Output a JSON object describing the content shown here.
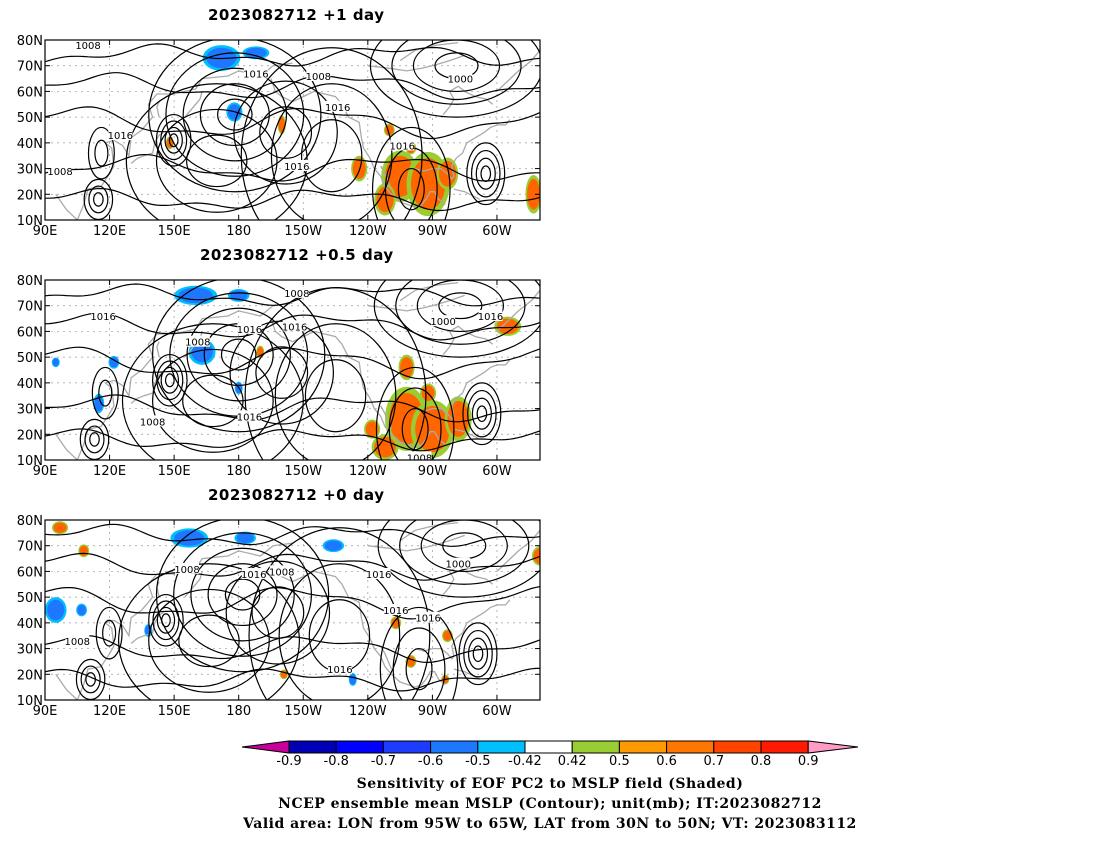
{
  "panels": [
    {
      "title": "2023082712  +1 day",
      "contour_labels": [
        {
          "text": "1008",
          "lon": 110,
          "lat": 78
        },
        {
          "text": "1016",
          "lon": 125,
          "lat": 43
        },
        {
          "text": "1008",
          "lon": 97,
          "lat": 29
        },
        {
          "text": "1016",
          "lon": 188,
          "lat": 67
        },
        {
          "text": "1008",
          "lon": 217,
          "lat": 66
        },
        {
          "text": "1016",
          "lon": 226,
          "lat": 54
        },
        {
          "text": "1016",
          "lon": 207,
          "lat": 31
        },
        {
          "text": "1016",
          "lon": 256,
          "lat": 39
        },
        {
          "text": "1000",
          "lon": 283,
          "lat": 65
        }
      ]
    },
    {
      "title": "2023082712  +0.5 day",
      "contour_labels": [
        {
          "text": "1008",
          "lon": 207,
          "lat": 75
        },
        {
          "text": "1016",
          "lon": 117,
          "lat": 66
        },
        {
          "text": "1008",
          "lon": 161,
          "lat": 56
        },
        {
          "text": "1016",
          "lon": 185,
          "lat": 61
        },
        {
          "text": "1016",
          "lon": 206,
          "lat": 62
        },
        {
          "text": "1016",
          "lon": 185,
          "lat": 27
        },
        {
          "text": "1008",
          "lon": 140,
          "lat": 25
        },
        {
          "text": "1000",
          "lon": 275,
          "lat": 64
        },
        {
          "text": "1016",
          "lon": 297,
          "lat": 66
        },
        {
          "text": "1008",
          "lon": 264,
          "lat": 11
        }
      ]
    },
    {
      "title": "2023082712  +0 day",
      "contour_labels": [
        {
          "text": "1008",
          "lon": 156,
          "lat": 61
        },
        {
          "text": "1016",
          "lon": 187,
          "lat": 59
        },
        {
          "text": "1008",
          "lon": 200,
          "lat": 60
        },
        {
          "text": "1016",
          "lon": 245,
          "lat": 59
        },
        {
          "text": "1016",
          "lon": 253,
          "lat": 45
        },
        {
          "text": "1016",
          "lon": 268,
          "lat": 42
        },
        {
          "text": "1016",
          "lon": 227,
          "lat": 22
        },
        {
          "text": "1008",
          "lon": 105,
          "lat": 33
        },
        {
          "text": "1000",
          "lon": 282,
          "lat": 63
        }
      ]
    }
  ],
  "axes": {
    "lon_ticks": [
      {
        "lon": 90,
        "label": "90E"
      },
      {
        "lon": 120,
        "label": "120E"
      },
      {
        "lon": 150,
        "label": "150E"
      },
      {
        "lon": 180,
        "label": "180"
      },
      {
        "lon": 210,
        "label": "150W"
      },
      {
        "lon": 240,
        "label": "120W"
      },
      {
        "lon": 270,
        "label": "90W"
      },
      {
        "lon": 300,
        "label": "60W"
      }
    ],
    "lat_ticks": [
      {
        "lat": 10,
        "label": "10N"
      },
      {
        "lat": 20,
        "label": "20N"
      },
      {
        "lat": 30,
        "label": "30N"
      },
      {
        "lat": 40,
        "label": "40N"
      },
      {
        "lat": 50,
        "label": "50N"
      },
      {
        "lat": 60,
        "label": "60N"
      },
      {
        "lat": 70,
        "label": "70N"
      },
      {
        "lat": 80,
        "label": "80N"
      }
    ],
    "lon_range": [
      90,
      320
    ],
    "lat_range": [
      10,
      80
    ]
  },
  "colorbar": {
    "bins": [
      {
        "label": "",
        "color": "#c8009a"
      },
      {
        "label": "-0.9",
        "color": "#0000b4"
      },
      {
        "label": "-0.8",
        "color": "#0000ff"
      },
      {
        "label": "-0.7",
        "color": "#1e3cff"
      },
      {
        "label": "-0.6",
        "color": "#1e78ff"
      },
      {
        "label": "-0.5",
        "color": "#00bfff"
      },
      {
        "label": "-0.42",
        "color": "#ffffff"
      },
      {
        "label": "0.42",
        "color": "#9acd32"
      },
      {
        "label": "0.5",
        "color": "#ff9900"
      },
      {
        "label": "0.6",
        "color": "#ff7700"
      },
      {
        "label": "0.7",
        "color": "#ff4400"
      },
      {
        "label": "0.8",
        "color": "#ff1a00"
      },
      {
        "label": "0.9",
        "color": "#ff9bc4"
      }
    ]
  },
  "caption": {
    "line1": "Sensitivity of EOF PC2 to MSLP field (Shaded)",
    "line2": "NCEP ensemble mean MSLP (Contour); unit(mb); IT:2023082712",
    "line3": "Valid area: LON from 95W to 65W, LAT from 30N to 50N; VT: 2023083112"
  },
  "colors": {
    "contour": "#000000",
    "coastline": "#aaaaaa",
    "grid": "#999999",
    "positive_shade": "#ff6600",
    "positive_edge": "#9acd32",
    "negative_shade": "#1e78ff",
    "negative_edge": "#00bfff"
  }
}
